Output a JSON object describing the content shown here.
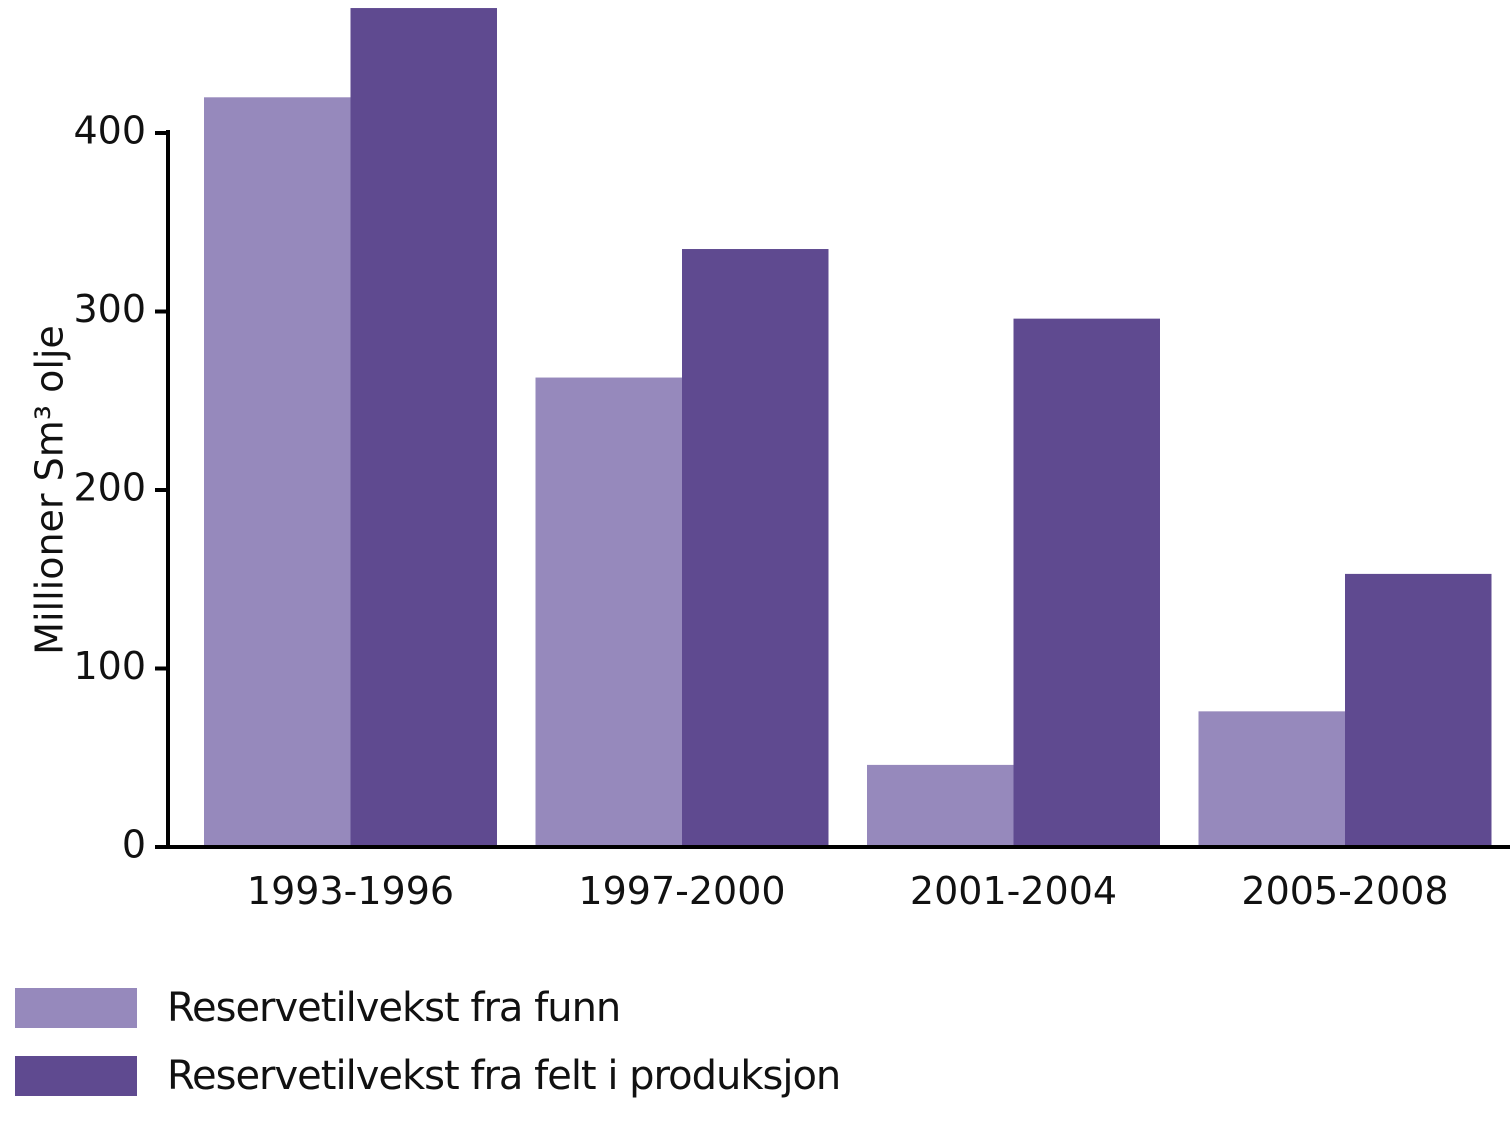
{
  "chart_data": {
    "type": "bar",
    "title": "",
    "xlabel": "",
    "ylabel": "Millioner Sm³ olje",
    "categories": [
      "1993-1996",
      "1997-2000",
      "2001-2004",
      "2005-2008"
    ],
    "series": [
      {
        "name": "Reservetilvekst fra funn",
        "color": "#9689bc",
        "values": [
          420,
          263,
          46,
          76
        ]
      },
      {
        "name": "Reservetilvekst fra felt i produksjon",
        "color": "#5f4a90",
        "values": [
          470,
          335,
          296,
          153
        ]
      }
    ],
    "ylim": [
      0,
      470
    ],
    "yticks": [
      0,
      100,
      200,
      300,
      400
    ],
    "grid": false,
    "legend_position": "bottom-left"
  }
}
